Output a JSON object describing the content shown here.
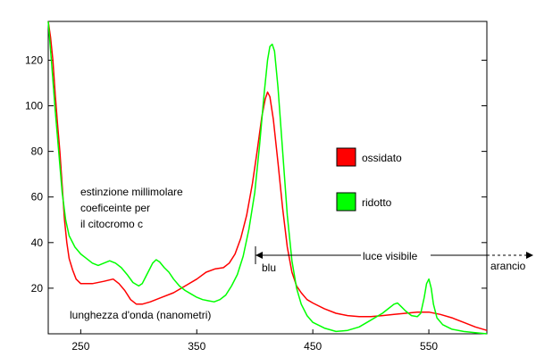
{
  "chart_data": {
    "type": "line",
    "title": "",
    "xlabel": "",
    "ylabel": "",
    "xlim": [
      222,
      600
    ],
    "ylim": [
      0,
      137
    ],
    "x_ticks": [
      250,
      350,
      450,
      550
    ],
    "y_ticks": [
      20,
      40,
      60,
      80,
      100,
      120
    ],
    "grid": false,
    "legend_position": "center-right",
    "series": [
      {
        "name": "ossidato",
        "color": "#ff0000",
        "points": [
          [
            222,
            137
          ],
          [
            224,
            130
          ],
          [
            226,
            120
          ],
          [
            228,
            105
          ],
          [
            230,
            92
          ],
          [
            232,
            80
          ],
          [
            234,
            65
          ],
          [
            236,
            50
          ],
          [
            238,
            40
          ],
          [
            240,
            33
          ],
          [
            243,
            28
          ],
          [
            246,
            24
          ],
          [
            250,
            22
          ],
          [
            260,
            22
          ],
          [
            270,
            23
          ],
          [
            278,
            24
          ],
          [
            283,
            22
          ],
          [
            288,
            19
          ],
          [
            293,
            15
          ],
          [
            298,
            13
          ],
          [
            303,
            13
          ],
          [
            310,
            14
          ],
          [
            320,
            16
          ],
          [
            330,
            18
          ],
          [
            340,
            21
          ],
          [
            350,
            24
          ],
          [
            358,
            27
          ],
          [
            366,
            28.5
          ],
          [
            373,
            29
          ],
          [
            378,
            31
          ],
          [
            383,
            35
          ],
          [
            388,
            42
          ],
          [
            393,
            52
          ],
          [
            398,
            66
          ],
          [
            402,
            80
          ],
          [
            406,
            95
          ],
          [
            409,
            103
          ],
          [
            411,
            106
          ],
          [
            413,
            104
          ],
          [
            416,
            94
          ],
          [
            420,
            75
          ],
          [
            424,
            55
          ],
          [
            428,
            38
          ],
          [
            432,
            27
          ],
          [
            436,
            21
          ],
          [
            440,
            18
          ],
          [
            445,
            15
          ],
          [
            450,
            13.5
          ],
          [
            460,
            11
          ],
          [
            470,
            9
          ],
          [
            480,
            8
          ],
          [
            490,
            7.5
          ],
          [
            500,
            7.5
          ],
          [
            510,
            8
          ],
          [
            520,
            8.5
          ],
          [
            530,
            9
          ],
          [
            540,
            9.5
          ],
          [
            550,
            9.5
          ],
          [
            560,
            8.5
          ],
          [
            570,
            7
          ],
          [
            580,
            5
          ],
          [
            590,
            3
          ],
          [
            600,
            1.5
          ]
        ]
      },
      {
        "name": "ridotto",
        "color": "#00ff00",
        "points": [
          [
            222,
            137
          ],
          [
            225,
            118
          ],
          [
            228,
            98
          ],
          [
            231,
            80
          ],
          [
            234,
            62
          ],
          [
            237,
            50
          ],
          [
            240,
            43
          ],
          [
            245,
            38
          ],
          [
            250,
            35
          ],
          [
            255,
            33
          ],
          [
            260,
            31
          ],
          [
            265,
            30
          ],
          [
            270,
            31
          ],
          [
            275,
            32
          ],
          [
            280,
            31
          ],
          [
            285,
            29
          ],
          [
            290,
            26
          ],
          [
            295,
            22.5
          ],
          [
            300,
            21
          ],
          [
            303,
            22
          ],
          [
            306,
            25
          ],
          [
            309,
            28
          ],
          [
            312,
            31
          ],
          [
            315,
            32.5
          ],
          [
            318,
            31.5
          ],
          [
            322,
            29
          ],
          [
            326,
            27
          ],
          [
            330,
            24
          ],
          [
            335,
            21
          ],
          [
            340,
            19
          ],
          [
            345,
            17.5
          ],
          [
            350,
            16
          ],
          [
            355,
            15
          ],
          [
            360,
            14.5
          ],
          [
            365,
            14
          ],
          [
            370,
            15
          ],
          [
            375,
            17
          ],
          [
            380,
            21
          ],
          [
            385,
            26
          ],
          [
            390,
            34
          ],
          [
            395,
            46
          ],
          [
            400,
            62
          ],
          [
            404,
            82
          ],
          [
            408,
            105
          ],
          [
            411,
            120
          ],
          [
            413,
            126
          ],
          [
            415,
            127
          ],
          [
            417,
            124
          ],
          [
            420,
            108
          ],
          [
            424,
            80
          ],
          [
            428,
            52
          ],
          [
            432,
            32
          ],
          [
            436,
            20
          ],
          [
            440,
            13
          ],
          [
            445,
            8
          ],
          [
            450,
            5
          ],
          [
            460,
            2.5
          ],
          [
            470,
            1
          ],
          [
            480,
            1.5
          ],
          [
            490,
            3
          ],
          [
            500,
            6
          ],
          [
            510,
            9
          ],
          [
            515,
            11
          ],
          [
            520,
            13
          ],
          [
            523,
            13.5
          ],
          [
            526,
            12
          ],
          [
            530,
            10
          ],
          [
            535,
            8
          ],
          [
            540,
            7.5
          ],
          [
            543,
            9
          ],
          [
            546,
            16
          ],
          [
            548,
            22
          ],
          [
            550,
            24
          ],
          [
            552,
            20
          ],
          [
            554,
            13
          ],
          [
            557,
            7
          ],
          [
            562,
            4
          ],
          [
            570,
            2
          ],
          [
            580,
            1
          ],
          [
            590,
            0.5
          ],
          [
            600,
            0
          ]
        ]
      }
    ],
    "legend": [
      {
        "label": "ossidato",
        "color": "#ff0000"
      },
      {
        "label": "ridotto",
        "color": "#00ff00"
      }
    ],
    "annotations": {
      "ylabel_lines": [
        "estinzione millimolare",
        "coeficeinte per",
        "il citocromo c"
      ],
      "xlabel_text": "lunghezza d'onda (nanometri)",
      "visible_range": {
        "start": 403,
        "end": 597,
        "label": "luce visibile"
      },
      "blu_label": "blu",
      "arancio_label": "arancio"
    }
  }
}
